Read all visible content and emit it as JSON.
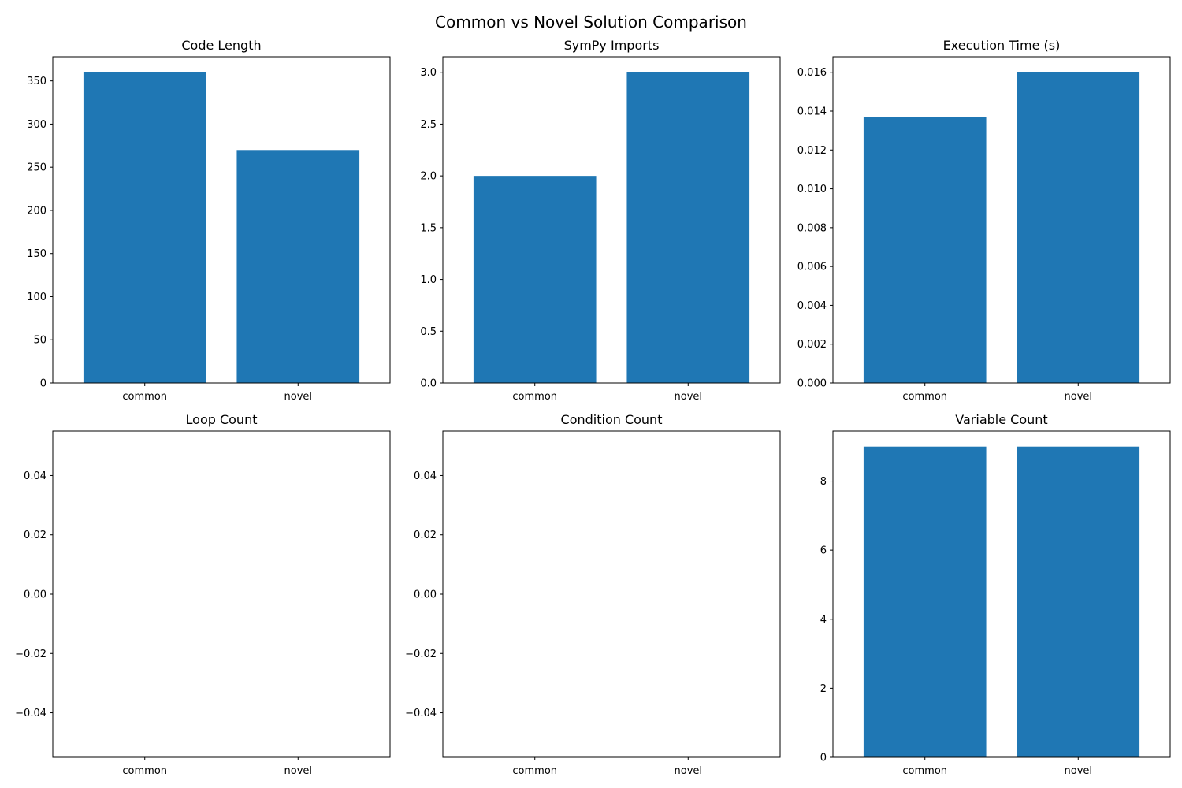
{
  "figure": {
    "title": "Common vs Novel Solution Comparison",
    "bar_color": "#1f77b4"
  },
  "chart_data": [
    {
      "type": "bar",
      "title": "Code Length",
      "categories": [
        "common",
        "novel"
      ],
      "values": [
        360,
        270
      ],
      "ylim": [
        0,
        378
      ],
      "yticks": [
        0,
        50,
        100,
        150,
        200,
        250,
        300,
        350
      ],
      "ytick_labels": [
        "0",
        "50",
        "100",
        "150",
        "200",
        "250",
        "300",
        "350"
      ],
      "grid": false
    },
    {
      "type": "bar",
      "title": "SymPy Imports",
      "categories": [
        "common",
        "novel"
      ],
      "values": [
        2,
        3
      ],
      "ylim": [
        0,
        3.15
      ],
      "yticks": [
        0,
        0.5,
        1.0,
        1.5,
        2.0,
        2.5,
        3.0
      ],
      "ytick_labels": [
        "0.0",
        "0.5",
        "1.0",
        "1.5",
        "2.0",
        "2.5",
        "3.0"
      ],
      "grid": false
    },
    {
      "type": "bar",
      "title": "Execution Time (s)",
      "categories": [
        "common",
        "novel"
      ],
      "values": [
        0.0137,
        0.016
      ],
      "ylim": [
        0,
        0.0168
      ],
      "yticks": [
        0,
        0.002,
        0.004,
        0.006,
        0.008,
        0.01,
        0.012,
        0.014,
        0.016
      ],
      "ytick_labels": [
        "0.000",
        "0.002",
        "0.004",
        "0.006",
        "0.008",
        "0.010",
        "0.012",
        "0.014",
        "0.016"
      ],
      "grid": false
    },
    {
      "type": "bar",
      "title": "Loop Count",
      "categories": [
        "common",
        "novel"
      ],
      "values": [
        0,
        0
      ],
      "ylim": [
        -0.055,
        0.055
      ],
      "yticks": [
        -0.04,
        -0.02,
        0,
        0.02,
        0.04
      ],
      "ytick_labels": [
        "−0.04",
        "−0.02",
        "0.00",
        "0.02",
        "0.04"
      ],
      "grid": false
    },
    {
      "type": "bar",
      "title": "Condition Count",
      "categories": [
        "common",
        "novel"
      ],
      "values": [
        0,
        0
      ],
      "ylim": [
        -0.055,
        0.055
      ],
      "yticks": [
        -0.04,
        -0.02,
        0,
        0.02,
        0.04
      ],
      "ytick_labels": [
        "−0.04",
        "−0.02",
        "0.00",
        "0.02",
        "0.04"
      ],
      "grid": false
    },
    {
      "type": "bar",
      "title": "Variable Count",
      "categories": [
        "common",
        "novel"
      ],
      "values": [
        9,
        9
      ],
      "ylim": [
        0,
        9.45
      ],
      "yticks": [
        0,
        2,
        4,
        6,
        8
      ],
      "ytick_labels": [
        "0",
        "2",
        "4",
        "6",
        "8"
      ],
      "grid": false
    }
  ]
}
